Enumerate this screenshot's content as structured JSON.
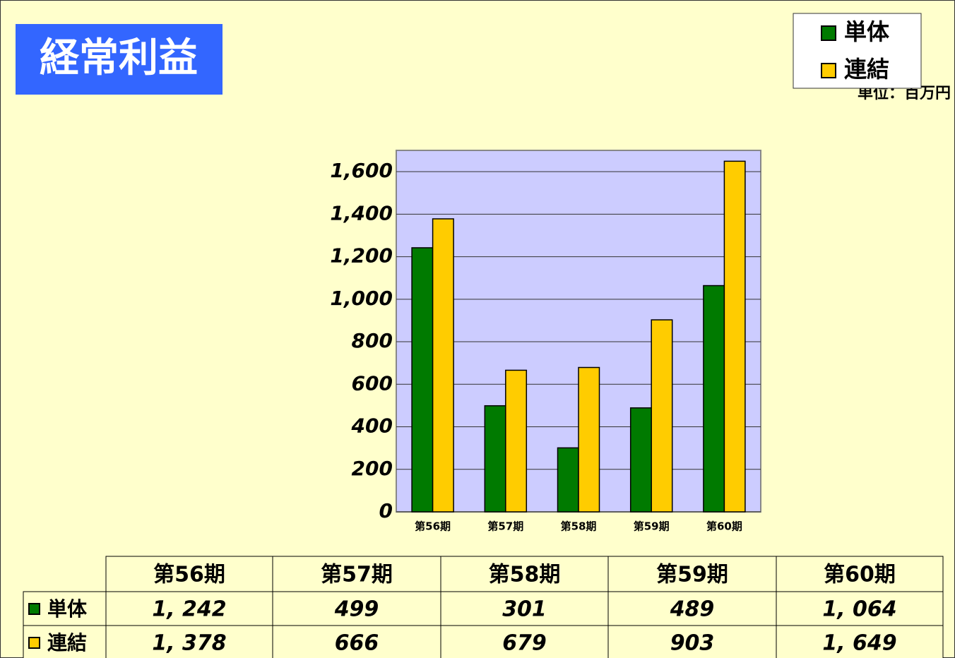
{
  "chart_data": {
    "type": "bar",
    "title": "経常利益",
    "unit_label": "単位：百万円",
    "categories": [
      "第56期",
      "第57期",
      "第58期",
      "第59期",
      "第60期"
    ],
    "series": [
      {
        "name": "単体",
        "color": "#007a00",
        "values": [
          1242,
          499,
          301,
          489,
          1064
        ],
        "value_labels": [
          "1, 242",
          "499",
          "301",
          "489",
          "1, 064"
        ]
      },
      {
        "name": "連結",
        "color": "#ffcc00",
        "values": [
          1378,
          666,
          679,
          903,
          1649
        ],
        "value_labels": [
          "1, 378",
          "666",
          "679",
          "903",
          "1, 649"
        ]
      }
    ],
    "ylim": [
      0,
      1700
    ],
    "yticks": [
      0,
      200,
      400,
      600,
      800,
      {
        "value": 1000,
        "label": "1,000"
      },
      {
        "value": 1200,
        "label": "1,200"
      },
      {
        "value": 1400,
        "label": "1,400"
      },
      {
        "value": 1600,
        "label": "1,600"
      }
    ],
    "grid": true,
    "legend": "top-right"
  }
}
